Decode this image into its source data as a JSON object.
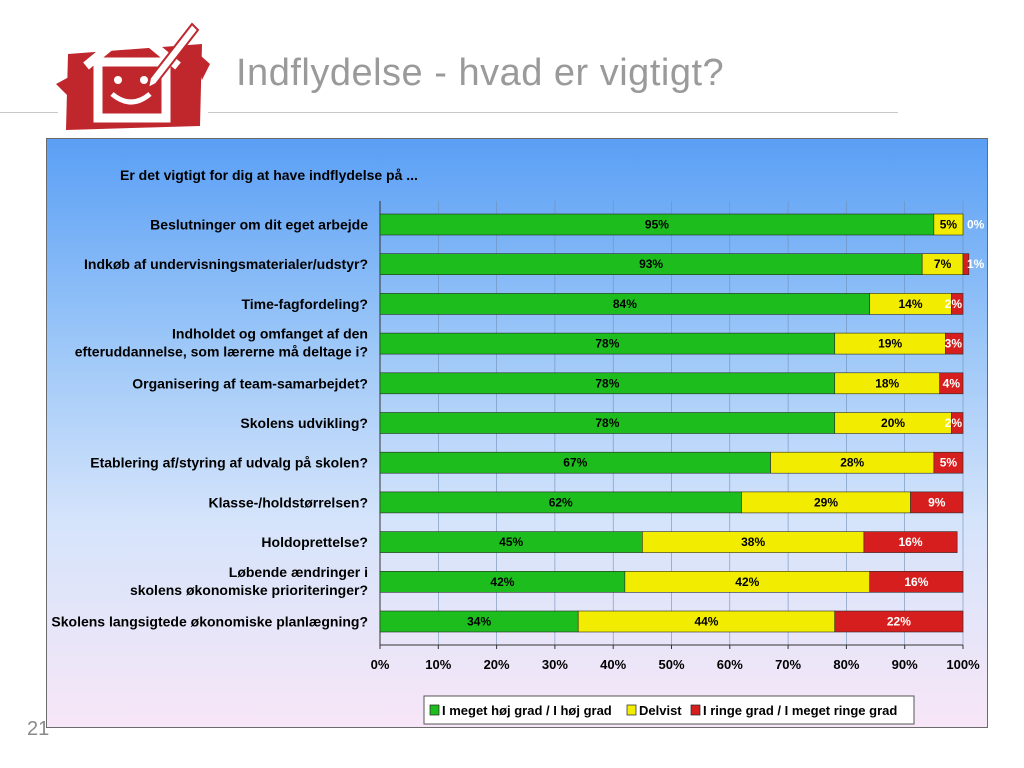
{
  "slide": {
    "title": "Indflydelse - hvad er vigtigt?",
    "page_number": "21"
  },
  "colors": {
    "high": "#1dbd1d",
    "partial": "#f2ec00",
    "low": "#d61e1e",
    "title_gray": "#9a9a9a",
    "logo_red": "#c0272d"
  },
  "chart_data": {
    "type": "bar",
    "orientation": "horizontal",
    "stacked": true,
    "title": "Er det vigtigt for dig at have indflydelse på ...",
    "categories": [
      "Beslutninger om dit eget arbejde",
      "Indkøb af undervisningsmaterialer/udstyr?",
      "Time-fagfordeling?",
      "Indholdet og omfanget af den\nefteruddannelse, som lærerne må deltage i?",
      "Organisering af team-samarbejdet?",
      "Skolens udvikling?",
      "Etablering af/styring af udvalg på skolen?",
      "Klasse-/holdstørrelsen?",
      "Holdoprettelse?",
      "Løbende ændringer i\nskolens økonomiske prioriteringer?",
      "Skolens langsigtede økonomiske planlægning?"
    ],
    "series": [
      {
        "name": "I meget høj grad / I høj grad",
        "color": "#1dbd1d",
        "values": [
          95,
          93,
          84,
          78,
          78,
          78,
          67,
          62,
          45,
          42,
          34
        ]
      },
      {
        "name": "Delvist",
        "color": "#f2ec00",
        "values": [
          5,
          7,
          14,
          19,
          18,
          20,
          28,
          29,
          38,
          42,
          44
        ]
      },
      {
        "name": "I ringe grad / I meget ringe grad",
        "color": "#d61e1e",
        "values": [
          0,
          1,
          2,
          3,
          4,
          2,
          5,
          9,
          16,
          16,
          22
        ]
      }
    ],
    "xlim": [
      0,
      100
    ],
    "xticks": [
      "0%",
      "10%",
      "20%",
      "30%",
      "40%",
      "50%",
      "60%",
      "70%",
      "80%",
      "90%",
      "100%"
    ],
    "value_suffix": "%",
    "grid": true,
    "legend_position": "bottom-right"
  }
}
